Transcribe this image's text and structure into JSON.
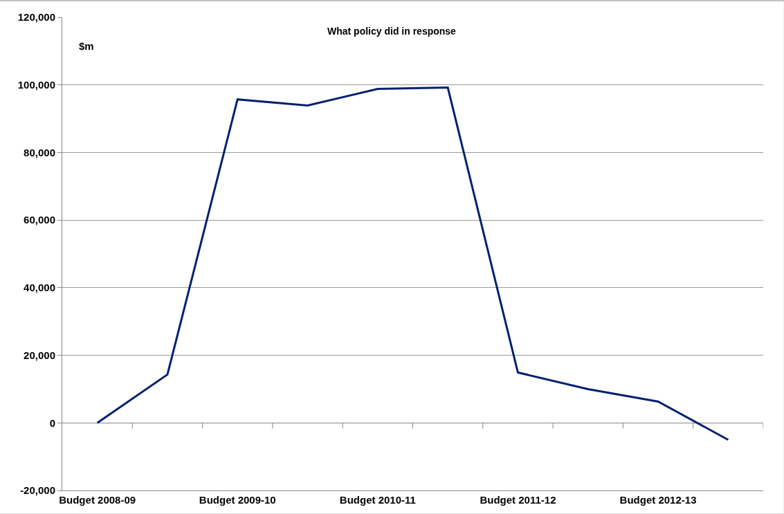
{
  "chart_data": {
    "type": "line",
    "title": "What policy did in response",
    "ylabel": "$m",
    "categories": [
      "Budget 2008-09",
      null,
      "Budget 2009-10",
      null,
      "Budget 2010-11",
      null,
      "Budget 2011-12",
      null,
      "Budget 2012-13",
      null
    ],
    "series": [
      {
        "color": "#002070",
        "values": [
          0,
          14300,
          95700,
          93900,
          98800,
          99200,
          14900,
          10000,
          6300,
          -5000
        ]
      }
    ],
    "ylim": [
      -20000,
      120000
    ],
    "yticks": [
      {
        "value": -20000,
        "label": "-20,000"
      },
      {
        "value": 0,
        "label": "0"
      },
      {
        "value": 20000,
        "label": "20,000"
      },
      {
        "value": 40000,
        "label": "40,000"
      },
      {
        "value": 60000,
        "label": "60,000"
      },
      {
        "value": 80000,
        "label": "80,000"
      },
      {
        "value": 100000,
        "label": "100,000"
      },
      {
        "value": 120000,
        "label": "120,000"
      }
    ],
    "grid": "y",
    "marker": "none",
    "line_style": "solid"
  }
}
